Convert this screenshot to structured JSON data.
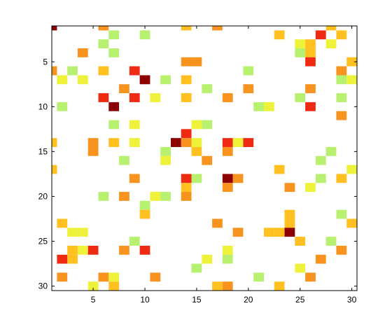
{
  "chart_data": {
    "type": "heatmap",
    "title": "",
    "xlabel": "",
    "ylabel": "",
    "xlim": [
      1,
      30
    ],
    "ylim": [
      1,
      30
    ],
    "y_reversed": true,
    "x_ticks": [
      5,
      10,
      15,
      20,
      25,
      30
    ],
    "y_ticks": [
      5,
      10,
      15,
      20,
      25,
      30
    ],
    "colormap": [
      "#ffffff",
      "#b8f070",
      "#eef23a",
      "#ffc020",
      "#f7931e",
      "#ee2a12",
      "#8b0000"
    ],
    "value_scale": "0 = empty (white), 1 = light green ... 6 = dark red",
    "cells": [
      [
        1,
        1,
        6
      ],
      [
        6,
        1,
        4
      ],
      [
        14,
        1,
        3
      ],
      [
        17,
        1,
        4
      ],
      [
        28,
        1,
        3
      ],
      [
        7,
        2,
        1
      ],
      [
        10,
        2,
        1
      ],
      [
        23,
        2,
        3
      ],
      [
        27,
        2,
        5
      ],
      [
        29,
        2,
        3
      ],
      [
        6,
        3,
        1
      ],
      [
        25,
        3,
        2
      ],
      [
        26,
        3,
        3
      ],
      [
        28,
        3,
        2
      ],
      [
        4,
        4,
        4
      ],
      [
        7,
        4,
        1
      ],
      [
        25,
        4,
        1
      ],
      [
        26,
        4,
        3
      ],
      [
        14,
        5,
        4
      ],
      [
        15,
        5,
        4
      ],
      [
        26,
        5,
        5
      ],
      [
        30,
        5,
        3
      ],
      [
        1,
        6,
        4
      ],
      [
        3,
        6,
        1
      ],
      [
        6,
        6,
        3
      ],
      [
        9,
        6,
        5
      ],
      [
        20,
        6,
        1
      ],
      [
        29,
        6,
        4
      ],
      [
        2,
        7,
        2
      ],
      [
        4,
        7,
        2
      ],
      [
        10,
        7,
        6
      ],
      [
        12,
        7,
        1
      ],
      [
        14,
        7,
        3
      ],
      [
        29,
        7,
        1
      ],
      [
        30,
        7,
        2
      ],
      [
        8,
        8,
        4
      ],
      [
        16,
        8,
        1
      ],
      [
        20,
        8,
        4
      ],
      [
        26,
        8,
        4
      ],
      [
        6,
        9,
        5
      ],
      [
        9,
        9,
        5
      ],
      [
        11,
        9,
        2
      ],
      [
        14,
        9,
        3
      ],
      [
        18,
        9,
        4
      ],
      [
        25,
        9,
        1
      ],
      [
        29,
        9,
        1
      ],
      [
        2,
        10,
        1
      ],
      [
        7,
        10,
        6
      ],
      [
        21,
        10,
        1
      ],
      [
        22,
        10,
        2
      ],
      [
        26,
        10,
        5
      ],
      [
        29,
        11,
        4
      ],
      [
        7,
        12,
        1
      ],
      [
        9,
        12,
        2
      ],
      [
        15,
        12,
        2
      ],
      [
        16,
        12,
        1
      ],
      [
        14,
        13,
        5
      ],
      [
        1,
        14,
        3
      ],
      [
        5,
        14,
        4
      ],
      [
        7,
        14,
        3
      ],
      [
        9,
        14,
        2
      ],
      [
        13,
        14,
        6
      ],
      [
        14,
        14,
        4
      ],
      [
        15,
        14,
        2
      ],
      [
        18,
        14,
        5
      ],
      [
        19,
        14,
        2
      ],
      [
        20,
        14,
        5
      ],
      [
        5,
        15,
        4
      ],
      [
        12,
        15,
        1
      ],
      [
        15,
        15,
        3
      ],
      [
        18,
        15,
        4
      ],
      [
        28,
        15,
        1
      ],
      [
        8,
        16,
        1
      ],
      [
        12,
        16,
        2
      ],
      [
        16,
        16,
        4
      ],
      [
        27,
        16,
        1
      ],
      [
        1,
        17,
        3
      ],
      [
        23,
        17,
        3
      ],
      [
        30,
        17,
        2
      ],
      [
        9,
        18,
        4
      ],
      [
        14,
        18,
        5
      ],
      [
        15,
        18,
        1
      ],
      [
        18,
        18,
        6
      ],
      [
        19,
        18,
        4
      ],
      [
        27,
        18,
        1
      ],
      [
        29,
        18,
        3
      ],
      [
        14,
        19,
        3
      ],
      [
        18,
        19,
        4
      ],
      [
        24,
        19,
        4
      ],
      [
        26,
        19,
        2
      ],
      [
        6,
        20,
        1
      ],
      [
        8,
        20,
        4
      ],
      [
        11,
        20,
        2
      ],
      [
        12,
        20,
        1
      ],
      [
        14,
        20,
        4
      ],
      [
        10,
        21,
        1
      ],
      [
        10,
        22,
        3
      ],
      [
        24,
        22,
        3
      ],
      [
        29,
        22,
        1
      ],
      [
        2,
        23,
        3
      ],
      [
        17,
        23,
        4
      ],
      [
        24,
        23,
        3
      ],
      [
        30,
        23,
        3
      ],
      [
        3,
        24,
        2
      ],
      [
        4,
        24,
        2
      ],
      [
        19,
        24,
        4
      ],
      [
        22,
        24,
        3
      ],
      [
        23,
        24,
        3
      ],
      [
        24,
        24,
        6
      ],
      [
        9,
        25,
        1
      ],
      [
        25,
        25,
        3
      ],
      [
        28,
        25,
        1
      ],
      [
        3,
        26,
        3
      ],
      [
        4,
        26,
        2
      ],
      [
        5,
        26,
        5
      ],
      [
        8,
        26,
        4
      ],
      [
        10,
        26,
        5
      ],
      [
        18,
        26,
        2
      ],
      [
        29,
        26,
        4
      ],
      [
        2,
        27,
        5
      ],
      [
        3,
        27,
        3
      ],
      [
        16,
        27,
        2
      ],
      [
        18,
        27,
        1
      ],
      [
        27,
        27,
        4
      ],
      [
        15,
        28,
        1
      ],
      [
        25,
        28,
        2
      ],
      [
        2,
        29,
        4
      ],
      [
        6,
        29,
        4
      ],
      [
        7,
        29,
        2
      ],
      [
        11,
        29,
        4
      ],
      [
        21,
        29,
        1
      ],
      [
        26,
        29,
        4
      ],
      [
        5,
        30,
        2
      ],
      [
        7,
        30,
        3
      ],
      [
        17,
        30,
        3
      ],
      [
        18,
        30,
        4
      ],
      [
        23,
        30,
        3
      ]
    ]
  }
}
